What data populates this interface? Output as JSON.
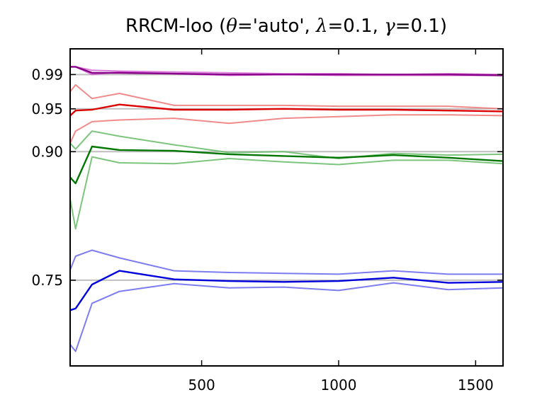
{
  "chart_data": {
    "type": "line",
    "title": {
      "prefix": "RRCM-loo (",
      "theta_sym": "θ",
      "theta_val": "='auto', ",
      "lambda_sym": "λ",
      "lambda_val": "=0.1, ",
      "gamma_sym": "γ",
      "gamma_val": "=0.1)"
    },
    "xlabel": "",
    "ylabel": "",
    "xlim": [
      20,
      1600
    ],
    "ylim": [
      0.65,
      1.02
    ],
    "x_ticks": [
      500,
      1000,
      1500
    ],
    "x_tick_labels": [
      "500",
      "1000",
      "1500"
    ],
    "y_ticks": [
      0.75,
      0.9,
      0.95,
      0.99
    ],
    "y_tick_labels": [
      "0.75",
      "0.90",
      "0.95",
      "0.99"
    ],
    "reference_lines": [
      0.75,
      0.9,
      0.95,
      0.99
    ],
    "x": [
      20,
      40,
      100,
      200,
      400,
      600,
      800,
      1000,
      1200,
      1400,
      1600
    ],
    "series": [
      {
        "color": "#cc44cc",
        "opacity": 0.7,
        "width": 2,
        "values": [
          0.999,
          0.999,
          0.99,
          0.993,
          0.991,
          0.989,
          0.99,
          0.989,
          0.989,
          0.989,
          0.989
        ]
      },
      {
        "color": "#cc44cc",
        "opacity": 0.7,
        "width": 2,
        "values": [
          0.999,
          0.999,
          0.995,
          0.994,
          0.993,
          0.992,
          0.991,
          0.991,
          0.99,
          0.991,
          0.99
        ]
      },
      {
        "color": "#880088",
        "opacity": 1.0,
        "width": 2.4,
        "values": [
          0.999,
          0.999,
          0.992,
          0.992,
          0.991,
          0.99,
          0.99,
          0.99,
          0.99,
          0.99,
          0.989
        ]
      },
      {
        "color": "#ee7777",
        "opacity": 0.85,
        "width": 2,
        "values": [
          0.97,
          0.978,
          0.962,
          0.968,
          0.954,
          0.954,
          0.954,
          0.953,
          0.953,
          0.953,
          0.95
        ]
      },
      {
        "color": "#ee7777",
        "opacity": 0.85,
        "width": 2,
        "values": [
          0.91,
          0.924,
          0.935,
          0.937,
          0.939,
          0.933,
          0.939,
          0.941,
          0.943,
          0.943,
          0.942
        ]
      },
      {
        "color": "#dd0000",
        "opacity": 1.0,
        "width": 2.4,
        "values": [
          0.942,
          0.948,
          0.949,
          0.955,
          0.949,
          0.949,
          0.95,
          0.949,
          0.949,
          0.948,
          0.947
        ]
      },
      {
        "color": "#66bb66",
        "opacity": 0.85,
        "width": 2,
        "values": [
          0.91,
          0.903,
          0.924,
          0.918,
          0.908,
          0.899,
          0.9,
          0.892,
          0.898,
          0.896,
          0.897
        ]
      },
      {
        "color": "#66bb66",
        "opacity": 0.85,
        "width": 2,
        "values": [
          0.845,
          0.81,
          0.894,
          0.887,
          0.886,
          0.892,
          0.888,
          0.885,
          0.89,
          0.89,
          0.886
        ]
      },
      {
        "color": "#007700",
        "opacity": 1.0,
        "width": 2.4,
        "values": [
          0.87,
          0.863,
          0.906,
          0.902,
          0.901,
          0.897,
          0.895,
          0.893,
          0.896,
          0.893,
          0.889
        ]
      },
      {
        "color": "#6666ee",
        "opacity": 0.85,
        "width": 2,
        "values": [
          0.762,
          0.778,
          0.785,
          0.776,
          0.761,
          0.759,
          0.758,
          0.757,
          0.761,
          0.757,
          0.757
        ]
      },
      {
        "color": "#6666ee",
        "opacity": 0.85,
        "width": 2,
        "values": [
          0.675,
          0.667,
          0.723,
          0.737,
          0.746,
          0.741,
          0.742,
          0.738,
          0.747,
          0.739,
          0.741
        ]
      },
      {
        "color": "#0000dd",
        "opacity": 1.0,
        "width": 2.4,
        "values": [
          0.715,
          0.717,
          0.745,
          0.761,
          0.751,
          0.749,
          0.748,
          0.749,
          0.753,
          0.747,
          0.748
        ]
      }
    ]
  }
}
